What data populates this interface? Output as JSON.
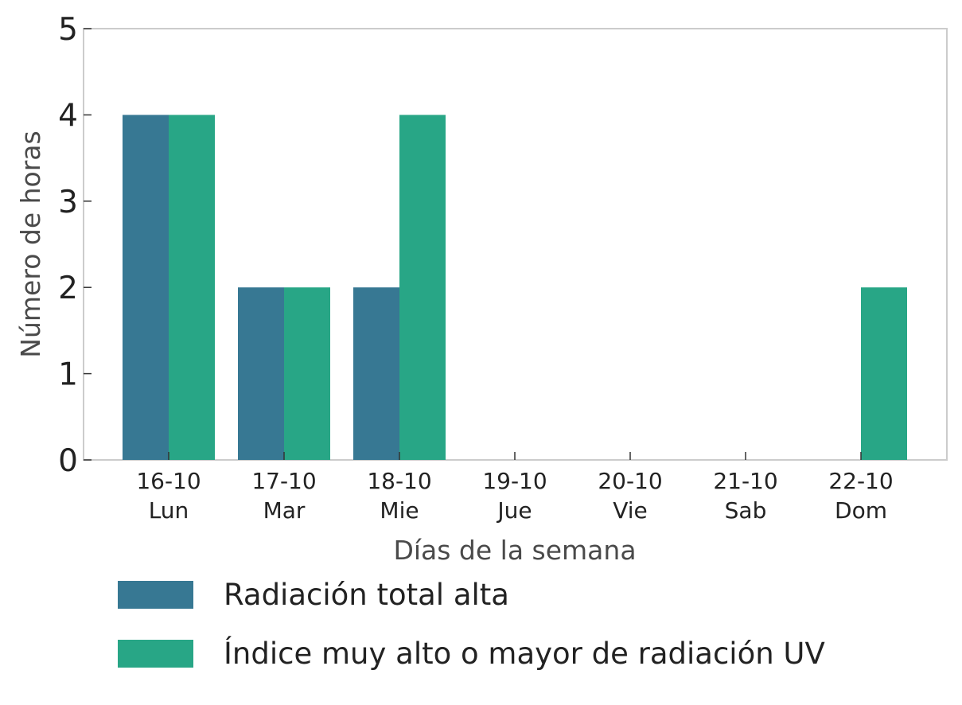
{
  "chart_data": {
    "type": "bar",
    "title": "",
    "xlabel": "Días de la semana",
    "ylabel": "Número de horas",
    "categories": [
      {
        "date": "16-10",
        "day": "Lun"
      },
      {
        "date": "17-10",
        "day": "Mar"
      },
      {
        "date": "18-10",
        "day": "Mie"
      },
      {
        "date": "19-10",
        "day": "Jue"
      },
      {
        "date": "20-10",
        "day": "Vie"
      },
      {
        "date": "21-10",
        "day": "Sab"
      },
      {
        "date": "22-10",
        "day": "Dom"
      }
    ],
    "series": [
      {
        "name": "Radiación total alta",
        "color": "#377893",
        "values": [
          4,
          2,
          2,
          0,
          0,
          0,
          0
        ]
      },
      {
        "name": "Índice muy alto o mayor de radiación UV",
        "color": "#28a686",
        "values": [
          4,
          2,
          4,
          0,
          0,
          0,
          2
        ]
      }
    ],
    "ylim": [
      0,
      5
    ],
    "yticks": [
      "0",
      "1",
      "2",
      "3",
      "4",
      "5"
    ],
    "grid": false,
    "legend_position": "bottom-left"
  }
}
